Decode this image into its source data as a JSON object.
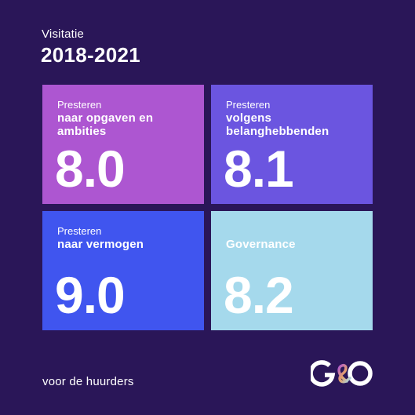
{
  "header": {
    "subtitle": "Visitatie",
    "title": "2018-2021"
  },
  "cards": [
    {
      "kicker": "Presteren",
      "title": "naar opgaven en ambities",
      "score": "8.0",
      "color": "#ad56d1"
    },
    {
      "kicker": "Presteren",
      "title": "volgens belanghebbenden",
      "score": "8.1",
      "color": "#6b55e0"
    },
    {
      "kicker": "Presteren",
      "title": "naar vermogen",
      "score": "9.0",
      "color": "#4055ef"
    },
    {
      "kicker": "",
      "title": "Governance",
      "score": "8.2",
      "color": "#a5d9ec"
    }
  ],
  "footer": {
    "text": "voor de huurders",
    "logo_text": "G&O"
  }
}
